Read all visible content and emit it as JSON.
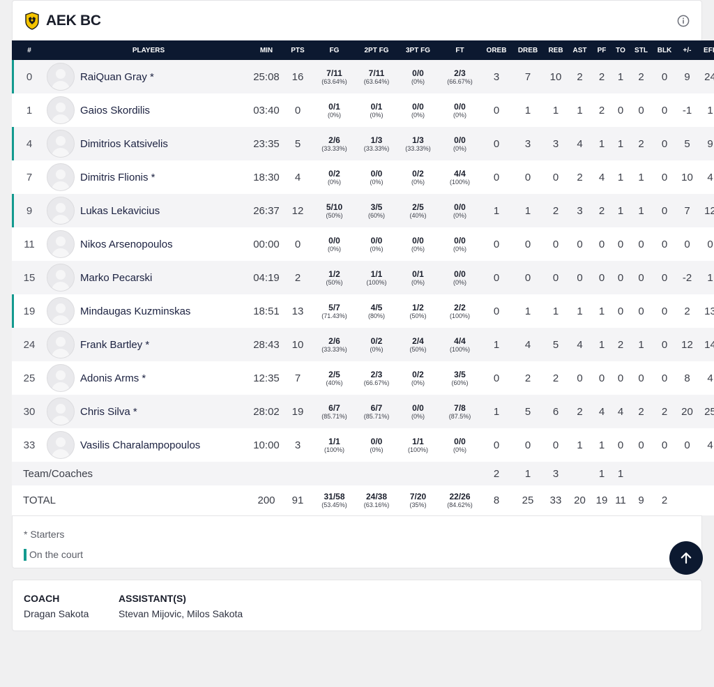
{
  "team": {
    "name": "AEK BC"
  },
  "columns": [
    "#",
    "PLAYERS",
    "MIN",
    "PTS",
    "FG",
    "2PT FG",
    "3PT FG",
    "FT",
    "OREB",
    "DREB",
    "REB",
    "AST",
    "PF",
    "TO",
    "STL",
    "BLK",
    "+/-",
    "EFF"
  ],
  "players": [
    {
      "num": "0",
      "name": "RaiQuan Gray *",
      "oncourt": true,
      "min": "25:08",
      "pts": "16",
      "fg": [
        "7/11",
        "(63.64%)"
      ],
      "fg2": [
        "7/11",
        "(63.64%)"
      ],
      "fg3": [
        "0/0",
        "(0%)"
      ],
      "ft": [
        "2/3",
        "(66.67%)"
      ],
      "oreb": "3",
      "dreb": "7",
      "reb": "10",
      "ast": "2",
      "pf": "2",
      "to": "1",
      "stl": "2",
      "blk": "0",
      "pm": "9",
      "eff": "24"
    },
    {
      "num": "1",
      "name": "Gaios Skordilis",
      "oncourt": false,
      "min": "03:40",
      "pts": "0",
      "fg": [
        "0/1",
        "(0%)"
      ],
      "fg2": [
        "0/1",
        "(0%)"
      ],
      "fg3": [
        "0/0",
        "(0%)"
      ],
      "ft": [
        "0/0",
        "(0%)"
      ],
      "oreb": "0",
      "dreb": "1",
      "reb": "1",
      "ast": "1",
      "pf": "2",
      "to": "0",
      "stl": "0",
      "blk": "0",
      "pm": "-1",
      "eff": "1"
    },
    {
      "num": "4",
      "name": "Dimitrios Katsivelis",
      "oncourt": true,
      "min": "23:35",
      "pts": "5",
      "fg": [
        "2/6",
        "(33.33%)"
      ],
      "fg2": [
        "1/3",
        "(33.33%)"
      ],
      "fg3": [
        "1/3",
        "(33.33%)"
      ],
      "ft": [
        "0/0",
        "(0%)"
      ],
      "oreb": "0",
      "dreb": "3",
      "reb": "3",
      "ast": "4",
      "pf": "1",
      "to": "1",
      "stl": "2",
      "blk": "0",
      "pm": "5",
      "eff": "9"
    },
    {
      "num": "7",
      "name": "Dimitris Flionis *",
      "oncourt": false,
      "min": "18:30",
      "pts": "4",
      "fg": [
        "0/2",
        "(0%)"
      ],
      "fg2": [
        "0/0",
        "(0%)"
      ],
      "fg3": [
        "0/2",
        "(0%)"
      ],
      "ft": [
        "4/4",
        "(100%)"
      ],
      "oreb": "0",
      "dreb": "0",
      "reb": "0",
      "ast": "2",
      "pf": "4",
      "to": "1",
      "stl": "1",
      "blk": "0",
      "pm": "10",
      "eff": "4"
    },
    {
      "num": "9",
      "name": "Lukas Lekavicius",
      "oncourt": true,
      "min": "26:37",
      "pts": "12",
      "fg": [
        "5/10",
        "(50%)"
      ],
      "fg2": [
        "3/5",
        "(60%)"
      ],
      "fg3": [
        "2/5",
        "(40%)"
      ],
      "ft": [
        "0/0",
        "(0%)"
      ],
      "oreb": "1",
      "dreb": "1",
      "reb": "2",
      "ast": "3",
      "pf": "2",
      "to": "1",
      "stl": "1",
      "blk": "0",
      "pm": "7",
      "eff": "12"
    },
    {
      "num": "11",
      "name": "Nikos Arsenopoulos",
      "oncourt": false,
      "min": "00:00",
      "pts": "0",
      "fg": [
        "0/0",
        "(0%)"
      ],
      "fg2": [
        "0/0",
        "(0%)"
      ],
      "fg3": [
        "0/0",
        "(0%)"
      ],
      "ft": [
        "0/0",
        "(0%)"
      ],
      "oreb": "0",
      "dreb": "0",
      "reb": "0",
      "ast": "0",
      "pf": "0",
      "to": "0",
      "stl": "0",
      "blk": "0",
      "pm": "0",
      "eff": "0"
    },
    {
      "num": "15",
      "name": "Marko Pecarski",
      "oncourt": false,
      "min": "04:19",
      "pts": "2",
      "fg": [
        "1/2",
        "(50%)"
      ],
      "fg2": [
        "1/1",
        "(100%)"
      ],
      "fg3": [
        "0/1",
        "(0%)"
      ],
      "ft": [
        "0/0",
        "(0%)"
      ],
      "oreb": "0",
      "dreb": "0",
      "reb": "0",
      "ast": "0",
      "pf": "0",
      "to": "0",
      "stl": "0",
      "blk": "0",
      "pm": "-2",
      "eff": "1"
    },
    {
      "num": "19",
      "name": "Mindaugas Kuzminskas",
      "oncourt": true,
      "min": "18:51",
      "pts": "13",
      "fg": [
        "5/7",
        "(71.43%)"
      ],
      "fg2": [
        "4/5",
        "(80%)"
      ],
      "fg3": [
        "1/2",
        "(50%)"
      ],
      "ft": [
        "2/2",
        "(100%)"
      ],
      "oreb": "0",
      "dreb": "1",
      "reb": "1",
      "ast": "1",
      "pf": "1",
      "to": "0",
      "stl": "0",
      "blk": "0",
      "pm": "2",
      "eff": "13"
    },
    {
      "num": "24",
      "name": "Frank Bartley *",
      "oncourt": false,
      "min": "28:43",
      "pts": "10",
      "fg": [
        "2/6",
        "(33.33%)"
      ],
      "fg2": [
        "0/2",
        "(0%)"
      ],
      "fg3": [
        "2/4",
        "(50%)"
      ],
      "ft": [
        "4/4",
        "(100%)"
      ],
      "oreb": "1",
      "dreb": "4",
      "reb": "5",
      "ast": "4",
      "pf": "1",
      "to": "2",
      "stl": "1",
      "blk": "0",
      "pm": "12",
      "eff": "14"
    },
    {
      "num": "25",
      "name": "Adonis Arms *",
      "oncourt": false,
      "min": "12:35",
      "pts": "7",
      "fg": [
        "2/5",
        "(40%)"
      ],
      "fg2": [
        "2/3",
        "(66.67%)"
      ],
      "fg3": [
        "0/2",
        "(0%)"
      ],
      "ft": [
        "3/5",
        "(60%)"
      ],
      "oreb": "0",
      "dreb": "2",
      "reb": "2",
      "ast": "0",
      "pf": "0",
      "to": "0",
      "stl": "0",
      "blk": "0",
      "pm": "8",
      "eff": "4"
    },
    {
      "num": "30",
      "name": "Chris Silva *",
      "oncourt": false,
      "min": "28:02",
      "pts": "19",
      "fg": [
        "6/7",
        "(85.71%)"
      ],
      "fg2": [
        "6/7",
        "(85.71%)"
      ],
      "fg3": [
        "0/0",
        "(0%)"
      ],
      "ft": [
        "7/8",
        "(87.5%)"
      ],
      "oreb": "1",
      "dreb": "5",
      "reb": "6",
      "ast": "2",
      "pf": "4",
      "to": "4",
      "stl": "2",
      "blk": "2",
      "pm": "20",
      "eff": "25"
    },
    {
      "num": "33",
      "name": "Vasilis Charalampopoulos",
      "oncourt": false,
      "min": "10:00",
      "pts": "3",
      "fg": [
        "1/1",
        "(100%)"
      ],
      "fg2": [
        "0/0",
        "(0%)"
      ],
      "fg3": [
        "1/1",
        "(100%)"
      ],
      "ft": [
        "0/0",
        "(0%)"
      ],
      "oreb": "0",
      "dreb": "0",
      "reb": "0",
      "ast": "1",
      "pf": "1",
      "to": "0",
      "stl": "0",
      "blk": "0",
      "pm": "0",
      "eff": "4"
    }
  ],
  "team_row": {
    "label": "Team/Coaches",
    "min": "",
    "pts": "",
    "fg": [
      "",
      ""
    ],
    "fg2": [
      "",
      ""
    ],
    "fg3": [
      "",
      ""
    ],
    "ft": [
      "",
      ""
    ],
    "oreb": "2",
    "dreb": "1",
    "reb": "3",
    "ast": "",
    "pf": "1",
    "to": "1",
    "stl": "",
    "blk": "",
    "pm": "",
    "eff": ""
  },
  "total_row": {
    "label": "TOTAL",
    "min": "200",
    "pts": "91",
    "fg": [
      "31/58",
      "(53.45%)"
    ],
    "fg2": [
      "24/38",
      "(63.16%)"
    ],
    "fg3": [
      "7/20",
      "(35%)"
    ],
    "ft": [
      "22/26",
      "(84.62%)"
    ],
    "oreb": "8",
    "dreb": "25",
    "reb": "33",
    "ast": "20",
    "pf": "19",
    "to": "11",
    "stl": "9",
    "blk": "2",
    "pm": "",
    "eff": ""
  },
  "legend": {
    "starters": "* Starters",
    "oncourt": "On the court"
  },
  "colors": {
    "header_bg": "#0c1930",
    "oncourt_marker": "#139a8f",
    "logo_yellow": "#f5c400"
  },
  "icons": {
    "info": "info-icon",
    "scroll_top": "arrow-up-icon",
    "logo": "aek-logo"
  },
  "coaching": {
    "coach_label": "COACH",
    "coach_name": "Dragan Sakota",
    "assistants_label": "ASSISTANT(S)",
    "assistants_names": "Stevan Mijovic, Milos Sakota"
  }
}
